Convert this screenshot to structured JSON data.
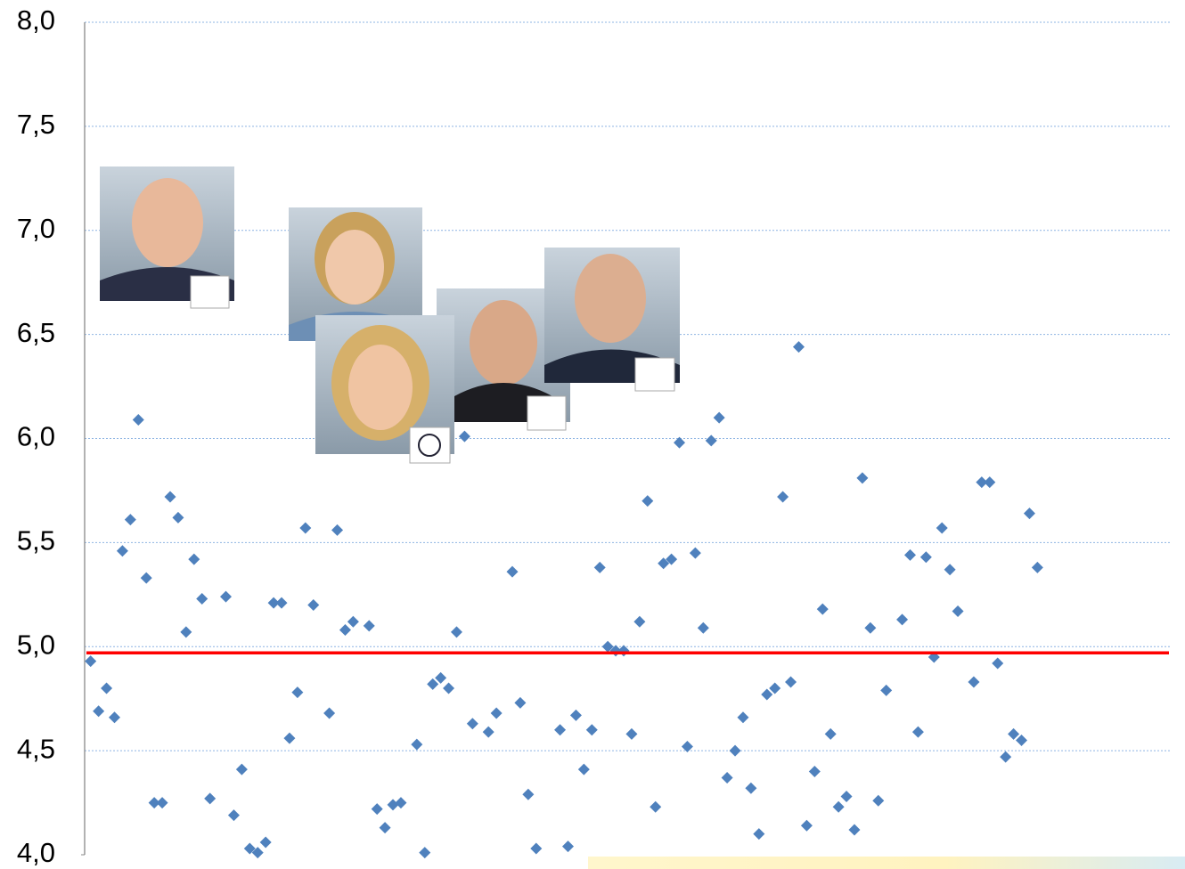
{
  "chart_data": {
    "type": "scatter",
    "values": [
      4.93,
      4.69,
      4.8,
      4.66,
      5.46,
      5.61,
      6.09,
      5.33,
      4.25,
      4.25,
      5.72,
      5.62,
      5.07,
      5.42,
      5.23,
      4.27,
      null,
      5.24,
      4.19,
      4.41,
      4.03,
      4.01,
      4.06,
      5.21,
      5.21,
      4.56,
      4.78,
      5.57,
      5.2,
      null,
      4.68,
      5.56,
      5.08,
      5.12,
      null,
      5.1,
      4.22,
      4.13,
      4.24,
      4.25,
      null,
      4.53,
      4.01,
      4.82,
      4.85,
      4.8,
      5.07,
      6.01,
      4.63,
      null,
      4.59,
      4.68,
      null,
      5.36,
      4.73,
      4.29,
      4.03,
      null,
      null,
      4.6,
      4.04,
      4.67,
      4.41,
      4.6,
      5.38,
      5.0,
      4.98,
      4.98,
      4.58,
      5.12,
      5.7,
      4.23,
      5.4,
      5.42,
      5.98,
      4.52,
      5.45,
      5.09,
      5.99,
      6.1,
      4.37,
      4.5,
      4.66,
      4.32,
      4.1,
      4.77,
      4.8,
      5.72,
      4.83,
      6.44,
      4.14,
      4.4,
      5.18,
      4.58,
      4.23,
      4.28,
      4.12,
      5.81,
      5.09,
      4.26,
      4.79,
      null,
      5.13,
      5.44,
      4.59,
      5.43,
      4.95,
      5.57,
      5.37,
      5.17,
      null,
      4.83,
      5.79,
      5.79,
      4.92,
      4.47,
      4.58,
      4.55,
      5.64,
      5.38
    ],
    "color": "#4f81bd",
    "ylim": [
      4.0,
      8.0
    ],
    "yticks": [
      {
        "value": 4.0,
        "label": "4,0"
      },
      {
        "value": 4.5,
        "label": "4,5"
      },
      {
        "value": 5.0,
        "label": "5,0"
      },
      {
        "value": 5.5,
        "label": "5,5"
      },
      {
        "value": 6.0,
        "label": "6,0"
      },
      {
        "value": 6.5,
        "label": "6,5"
      },
      {
        "value": 7.0,
        "label": "7,0"
      },
      {
        "value": 7.5,
        "label": "7,5"
      },
      {
        "value": 8.0,
        "label": "8,0"
      }
    ],
    "grid": true,
    "reference_line": {
      "value": 4.97,
      "color": "#ff0000"
    }
  }
}
